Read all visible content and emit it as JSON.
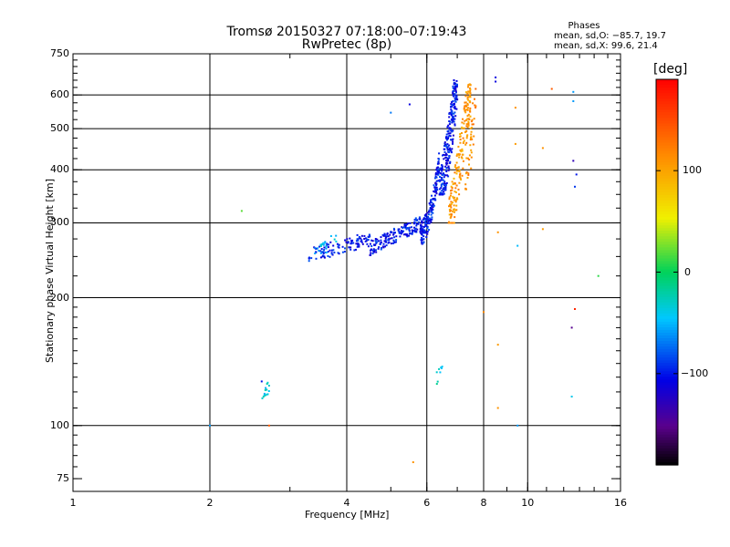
{
  "title": "Tromsø 20150327 07:18:00–07:19:43",
  "subtitle": "RwPretec (8p)",
  "phases": {
    "heading": "Phases",
    "o_line": "mean, sd,O: −85.7, 19.7",
    "x_line": "mean, sd,X:  99.6, 21.4"
  },
  "colorbar": {
    "unit": "[deg]",
    "ticks": [
      100,
      0,
      -100
    ],
    "tick_labels": [
      "100",
      "0",
      "−100"
    ],
    "range": [
      -190,
      190
    ]
  },
  "chart_data": {
    "type": "scatter",
    "xscale": "log",
    "yscale": "log",
    "xlabel": "Frequency [MHz]",
    "ylabel": "Stationary phase Virtual Height [km]",
    "xlim": [
      1,
      16
    ],
    "ylim": [
      70,
      750
    ],
    "xticks": [
      1,
      2,
      4,
      6,
      8,
      10,
      16
    ],
    "xtick_labels": [
      "1",
      "2",
      "4",
      "6",
      "8",
      "10",
      "16"
    ],
    "yticks": [
      75,
      100,
      200,
      300,
      400,
      500,
      600,
      750
    ],
    "ytick_labels": [
      "75",
      "100",
      "200",
      "300",
      "400",
      "500",
      "600",
      "750"
    ],
    "xgrid": [
      2,
      4,
      6,
      8,
      10
    ],
    "ygrid": [
      100,
      200,
      300,
      400,
      500,
      600
    ],
    "clusters": [
      {
        "name": "O-trace low",
        "f": [
          3.3,
          4.5
        ],
        "h": [
          252,
          275
        ],
        "phase": -100,
        "n": 110
      },
      {
        "name": "O-trace mid",
        "f": [
          4.5,
          5.8
        ],
        "h": [
          262,
          300
        ],
        "phase": -100,
        "n": 160
      },
      {
        "name": "O-trace knee",
        "f": [
          5.8,
          6.4
        ],
        "h": [
          285,
          420
        ],
        "phase": -100,
        "n": 180
      },
      {
        "name": "O-trace cusp",
        "f": [
          6.4,
          7.0
        ],
        "h": [
          350,
          650
        ],
        "phase": -100,
        "n": 260
      },
      {
        "name": "X-trace cusp",
        "f": [
          6.7,
          7.5
        ],
        "h": [
          300,
          640
        ],
        "phase": 105,
        "n": 200
      },
      {
        "name": "X-trace edge",
        "f": [
          7.3,
          7.7
        ],
        "h": [
          360,
          620
        ],
        "phase": 115,
        "n": 40
      },
      {
        "name": "E-layer echo",
        "f": [
          2.6,
          2.7
        ],
        "h": [
          116,
          124
        ],
        "phase": -40,
        "n": 14
      },
      {
        "name": "low-height echo",
        "f": [
          6.3,
          6.5
        ],
        "h": [
          128,
          140
        ],
        "phase": -30,
        "n": 8
      },
      {
        "name": "cyan mix",
        "f": [
          3.4,
          3.8
        ],
        "h": [
          255,
          275
        ],
        "phase": -50,
        "n": 20
      }
    ],
    "isolated_points": [
      {
        "f": 2.35,
        "h": 320,
        "phase": 20
      },
      {
        "f": 2.6,
        "h": 127,
        "phase": -100
      },
      {
        "f": 5.0,
        "h": 545,
        "phase": -70
      },
      {
        "f": 5.5,
        "h": 570,
        "phase": -110
      },
      {
        "f": 5.6,
        "h": 82,
        "phase": 110
      },
      {
        "f": 8.0,
        "h": 185,
        "phase": 115
      },
      {
        "f": 8.5,
        "h": 660,
        "phase": -110
      },
      {
        "f": 8.5,
        "h": 645,
        "phase": -110
      },
      {
        "f": 8.6,
        "h": 285,
        "phase": 110
      },
      {
        "f": 8.6,
        "h": 155,
        "phase": 105
      },
      {
        "f": 8.6,
        "h": 110,
        "phase": 110
      },
      {
        "f": 9.4,
        "h": 560,
        "phase": 110
      },
      {
        "f": 9.4,
        "h": 460,
        "phase": 105
      },
      {
        "f": 9.5,
        "h": 265,
        "phase": -50
      },
      {
        "f": 9.5,
        "h": 100,
        "phase": -60
      },
      {
        "f": 10.8,
        "h": 450,
        "phase": 110
      },
      {
        "f": 10.8,
        "h": 290,
        "phase": 105
      },
      {
        "f": 11.3,
        "h": 620,
        "phase": 140
      },
      {
        "f": 12.6,
        "h": 610,
        "phase": -60
      },
      {
        "f": 12.6,
        "h": 580,
        "phase": -60
      },
      {
        "f": 12.6,
        "h": 420,
        "phase": -130
      },
      {
        "f": 12.8,
        "h": 390,
        "phase": -100
      },
      {
        "f": 12.7,
        "h": 365,
        "phase": -90
      },
      {
        "f": 12.7,
        "h": 188,
        "phase": 170
      },
      {
        "f": 12.5,
        "h": 170,
        "phase": -150
      },
      {
        "f": 12.5,
        "h": 117,
        "phase": -40
      },
      {
        "f": 14.3,
        "h": 225,
        "phase": 10
      },
      {
        "f": 2.0,
        "h": 100,
        "phase": -60
      },
      {
        "f": 2.7,
        "h": 100,
        "phase": 140
      }
    ]
  }
}
